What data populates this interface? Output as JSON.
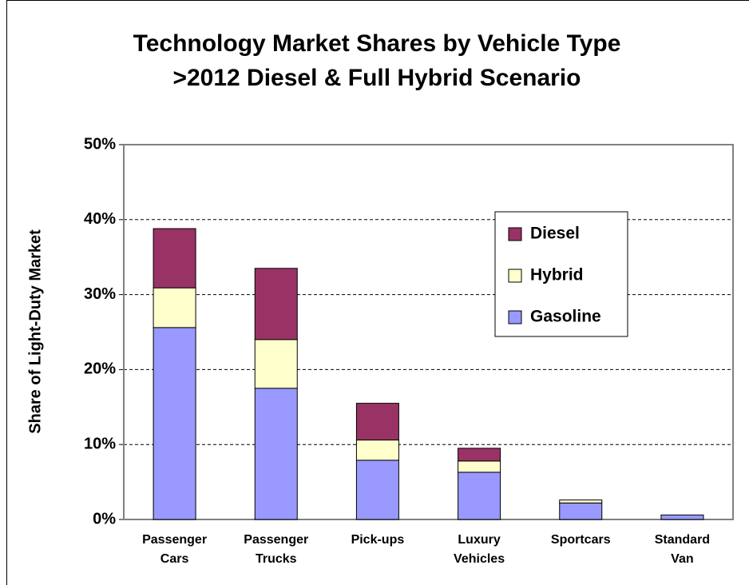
{
  "chart_data": {
    "type": "stacked_bar",
    "title": "Technology Market Shares by Vehicle Type",
    "subtitle": ">2012 Diesel & Full Hybrid Scenario",
    "y_label": "Share of Light-Duty Market",
    "categories": [
      "Passenger Cars",
      "Passenger Trucks",
      "Pick-ups",
      "Luxury Vehicles",
      "Sportcars",
      "Standard Van"
    ],
    "series": [
      {
        "name": "Gasoline",
        "color": "#9999ff",
        "values": [
          25.6,
          17.5,
          7.9,
          6.3,
          2.2,
          0.6
        ]
      },
      {
        "name": "Hybrid",
        "color": "#ffffcc",
        "values": [
          5.3,
          6.5,
          2.7,
          1.5,
          0.4,
          0
        ]
      },
      {
        "name": "Diesel",
        "color": "#993366",
        "values": [
          7.9,
          9.5,
          4.9,
          1.7,
          0,
          0
        ]
      }
    ],
    "ylim": [
      0,
      50
    ],
    "yticks": [
      {
        "value": 0,
        "label": "0%"
      },
      {
        "value": 10,
        "label": "10%"
      },
      {
        "value": 20,
        "label": "20%"
      },
      {
        "value": 30,
        "label": "30%"
      },
      {
        "value": 40,
        "label": "40%"
      },
      {
        "value": 50,
        "label": "50%"
      }
    ],
    "grid": true
  }
}
